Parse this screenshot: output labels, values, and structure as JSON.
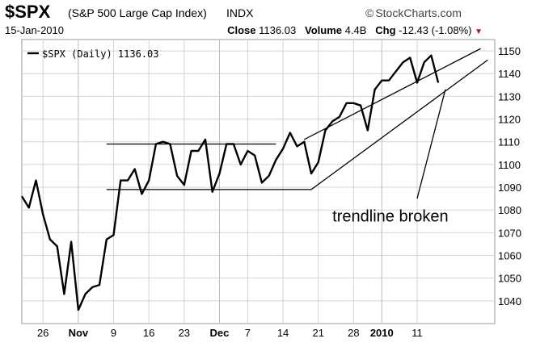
{
  "header": {
    "symbol": "$SPX",
    "description": "(S&P 500 Large Cap Index)",
    "exchange": "INDX",
    "date": "15-Jan-2010",
    "source": "StockCharts.com",
    "source_icon": "copyright-icon",
    "close_label": "Close",
    "close_value": "1136.03",
    "volume_label": "Volume",
    "volume_value": "4.4B",
    "chg_label": "Chg",
    "chg_value": "-12.43 (-1.08%)",
    "chg_icon": "down-triangle-icon",
    "chg_color": "#b0102e"
  },
  "chart_data": {
    "type": "line",
    "legend": {
      "text": "$SPX (Daily) 1136.03",
      "placement": "top-left"
    },
    "ylim": [
      1030,
      1155
    ],
    "yticks": [
      1040,
      1050,
      1060,
      1070,
      1080,
      1090,
      1100,
      1110,
      1120,
      1130,
      1140,
      1150
    ],
    "y_axis_side": "right",
    "xlim": [
      0,
      67
    ],
    "xticks": [
      {
        "i": 3,
        "label": "26",
        "bold": false
      },
      {
        "i": 8,
        "label": "Nov",
        "bold": true
      },
      {
        "i": 13,
        "label": "9",
        "bold": false
      },
      {
        "i": 18,
        "label": "16",
        "bold": false
      },
      {
        "i": 23,
        "label": "23",
        "bold": false
      },
      {
        "i": 28,
        "label": "Dec",
        "bold": true
      },
      {
        "i": 32,
        "label": "7",
        "bold": false
      },
      {
        "i": 37,
        "label": "14",
        "bold": false
      },
      {
        "i": 42,
        "label": "21",
        "bold": false
      },
      {
        "i": 47,
        "label": "28",
        "bold": false
      },
      {
        "i": 51,
        "label": "2010",
        "bold": true
      },
      {
        "i": 56,
        "label": "11",
        "bold": false
      }
    ],
    "grid": true,
    "series": [
      {
        "values": [
          1086,
          1081,
          1093,
          1078,
          1067,
          1064,
          1043,
          1066,
          1036,
          1043,
          1046,
          1047,
          1067,
          1069,
          1093,
          1093,
          1098,
          1087,
          1093,
          1109,
          1110,
          1109,
          1095,
          1091,
          1106,
          1106,
          1111,
          1088,
          1096,
          1109,
          1109,
          1100,
          1106,
          1104,
          1092,
          1095,
          1102,
          1107,
          1114,
          1108,
          1110,
          1096,
          1101,
          1115,
          1119,
          1121,
          1127,
          1127,
          1126,
          1115,
          1133,
          1137,
          1137,
          1141,
          1145,
          1147,
          1136,
          1145,
          1148,
          1136
        ],
        "color": "#000000"
      }
    ],
    "overlays": [
      {
        "kind": "line",
        "from": [
          12,
          1109
        ],
        "to": [
          36,
          1109
        ]
      },
      {
        "kind": "line",
        "from": [
          12,
          1089
        ],
        "to": [
          41,
          1089
        ]
      },
      {
        "kind": "line",
        "from": [
          40,
          1111
        ],
        "to": [
          65,
          1151
        ]
      },
      {
        "kind": "line",
        "from": [
          41,
          1089
        ],
        "to": [
          66,
          1146
        ]
      },
      {
        "kind": "line",
        "from": [
          56,
          1085
        ],
        "to": [
          60,
          1133
        ]
      }
    ],
    "annotations": [
      {
        "text": "trendline broken",
        "at": [
          44,
          1075
        ]
      }
    ]
  }
}
